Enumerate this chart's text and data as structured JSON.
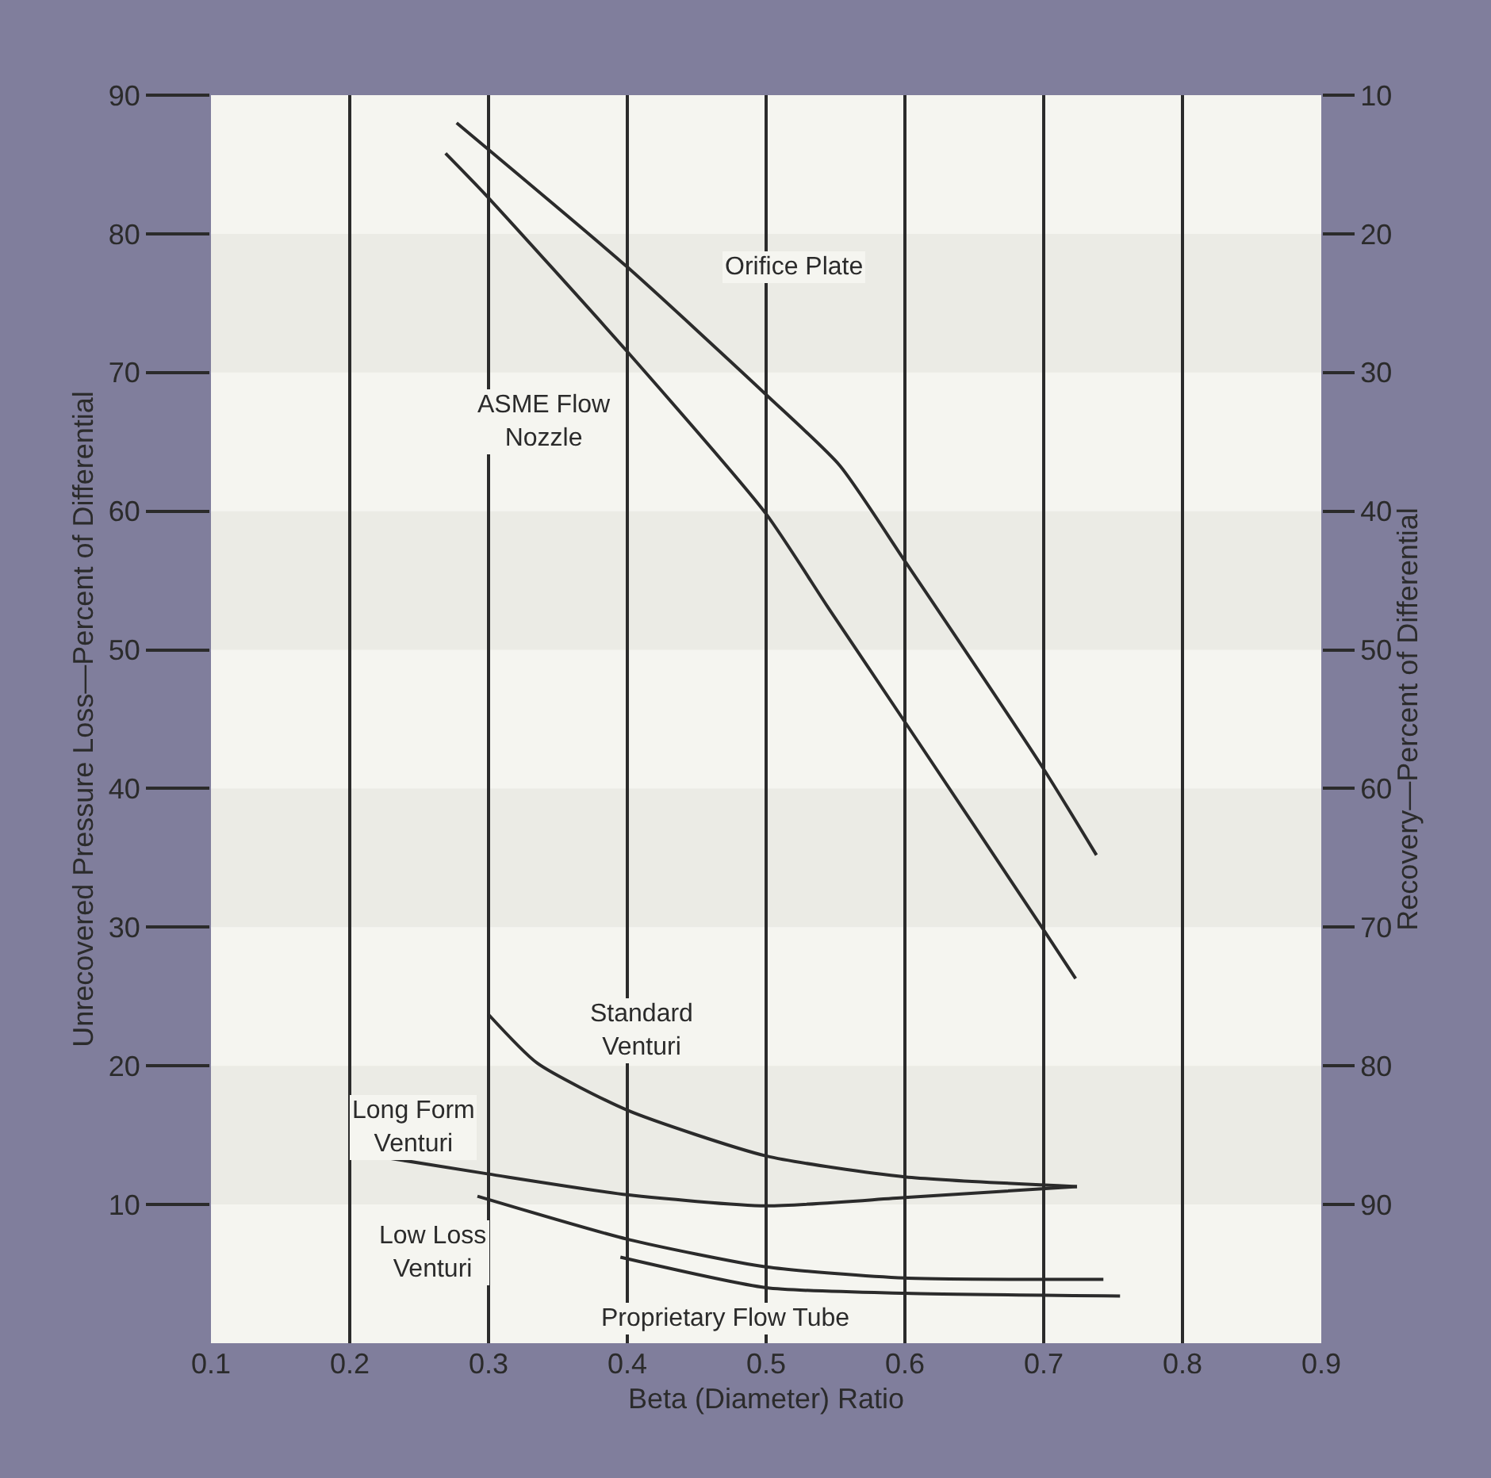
{
  "chart_data": {
    "type": "line",
    "xlabel": "Beta (Diameter) Ratio",
    "ylabel": "Unrecovered Pressure Loss—Percent of Differential",
    "y2label": "Recovery—Percent of Differential",
    "xlim": [
      0.1,
      0.9
    ],
    "xticks": [
      0.1,
      0.2,
      0.3,
      0.4,
      0.5,
      0.6,
      0.7,
      0.8,
      0.9
    ],
    "ylim": [
      0,
      90
    ],
    "yticks": [
      10,
      20,
      30,
      40,
      50,
      60,
      70,
      80,
      90
    ],
    "y2lim": [
      100,
      10
    ],
    "y2ticks": [
      10,
      20,
      30,
      40,
      50,
      60,
      70,
      80,
      90
    ],
    "grid": "x",
    "legend": false,
    "marker": "none",
    "line_style": "solid",
    "bands": [
      {
        "axis": "y",
        "from": 10,
        "to": 20,
        "color": "#ebebe5"
      },
      {
        "axis": "y",
        "from": 30,
        "to": 40,
        "color": "#ebebe5"
      },
      {
        "axis": "y",
        "from": 50,
        "to": 60,
        "color": "#ebebe5"
      },
      {
        "axis": "y",
        "from": 70,
        "to": 80,
        "color": "#ebebe5"
      }
    ],
    "series": [
      {
        "name": "Orifice Plate",
        "color": "#2b2b2b",
        "x": [
          0.277,
          0.4,
          0.5,
          0.553,
          0.6,
          0.7,
          0.738
        ],
        "values": [
          88.0,
          77.6,
          68.4,
          63.3,
          56.4,
          41.4,
          35.2
        ]
      },
      {
        "name": "ASME Flow\nNozzle",
        "color": "#2b2b2b",
        "x": [
          0.269,
          0.298,
          0.4,
          0.5,
          0.545,
          0.6,
          0.7,
          0.723
        ],
        "values": [
          85.8,
          82.8,
          71.5,
          59.8,
          53.0,
          44.8,
          29.8,
          26.3
        ]
      },
      {
        "name": "Standard\nVenturi",
        "color": "#2b2b2b",
        "x": [
          0.3,
          0.335,
          0.4,
          0.5,
          0.6,
          0.724
        ],
        "values": [
          23.7,
          20.2,
          16.8,
          13.5,
          12.0,
          11.3
        ]
      },
      {
        "name": "Long Form\nVenturi",
        "color": "#2b2b2b",
        "x": [
          0.2,
          0.3,
          0.4,
          0.5,
          0.6,
          0.724
        ],
        "values": [
          13.8,
          12.2,
          10.7,
          9.9,
          10.5,
          11.3
        ]
      },
      {
        "name": "Low Loss\nVenturi",
        "color": "#2b2b2b",
        "x": [
          0.292,
          0.4,
          0.5,
          0.6,
          0.743
        ],
        "values": [
          10.6,
          7.5,
          5.5,
          4.7,
          4.6
        ]
      },
      {
        "name": "Proprietary Flow Tube",
        "color": "#2b2b2b",
        "x": [
          0.395,
          0.5,
          0.6,
          0.755
        ],
        "values": [
          6.2,
          4.0,
          3.6,
          3.4
        ]
      }
    ]
  }
}
